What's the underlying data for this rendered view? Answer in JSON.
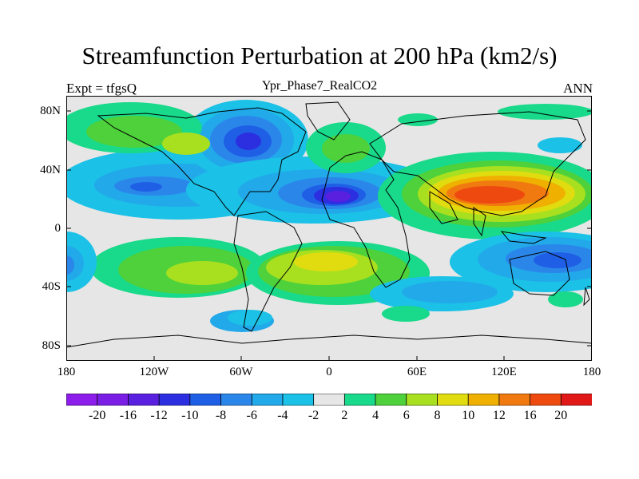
{
  "header": {
    "title": "Streamfunction Perturbation at 200 hPa (km2/s)",
    "left_label": "Expt = tfgsQ",
    "center_label": "Ypr_Phase7_RealCO2",
    "right_label": "ANN"
  },
  "axes": {
    "lat_ticks": [
      "80N",
      "40N",
      "0",
      "40S",
      "80S"
    ],
    "lon_ticks": [
      "180",
      "120W",
      "60W",
      "0",
      "60E",
      "120E",
      "180"
    ]
  },
  "colorbar": {
    "labels": [
      "-20",
      "-16",
      "-12",
      "-10",
      "-8",
      "-6",
      "-4",
      "-2",
      "2",
      "4",
      "6",
      "8",
      "10",
      "12",
      "16",
      "20"
    ],
    "colors": [
      "#8c1dea",
      "#7a1ee6",
      "#5a20e0",
      "#2c2fe0",
      "#1f5fe6",
      "#2b86ea",
      "#22a9ea",
      "#1bc1e6",
      "#e6e6e6",
      "#19d98a",
      "#4ed13a",
      "#a8e020",
      "#e0dc10",
      "#f0b000",
      "#f07a10",
      "#ee4a10",
      "#e01818"
    ]
  },
  "chart_data": {
    "type": "contour-map",
    "title": "Streamfunction Perturbation at 200 hPa (km2/s)",
    "projection": "cylindrical-equidistant",
    "lon_range": [
      -180,
      180
    ],
    "lat_range": [
      -90,
      90
    ],
    "contour_levels": [
      -20,
      -16,
      -12,
      -10,
      -8,
      -6,
      -4,
      -2,
      2,
      4,
      6,
      8,
      10,
      12,
      16,
      20
    ],
    "features": [
      {
        "name": "subtropical-atlantic-low",
        "lon": 5,
        "lat": 25,
        "value": -11
      },
      {
        "name": "north-america-low",
        "lon": -55,
        "lat": 62,
        "value": -10
      },
      {
        "name": "pacific-low",
        "lon": -130,
        "lat": 30,
        "value": -8
      },
      {
        "name": "asia-high",
        "lon": 100,
        "lat": 26,
        "value": 13
      },
      {
        "name": "southern-pacific-low",
        "lon": 155,
        "lat": -22,
        "value": -7
      },
      {
        "name": "south-atlantic-high",
        "lon": 15,
        "lat": -22,
        "value": 7
      },
      {
        "name": "south-america-high",
        "lon": -85,
        "lat": -27,
        "value": 5
      },
      {
        "name": "north-pacific-high",
        "lon": -115,
        "lat": 63,
        "value": 5
      },
      {
        "name": "europe-high",
        "lon": 22,
        "lat": 55,
        "value": 5
      },
      {
        "name": "southern-ocean-low",
        "lon": -65,
        "lat": -57,
        "value": -5
      }
    ]
  }
}
